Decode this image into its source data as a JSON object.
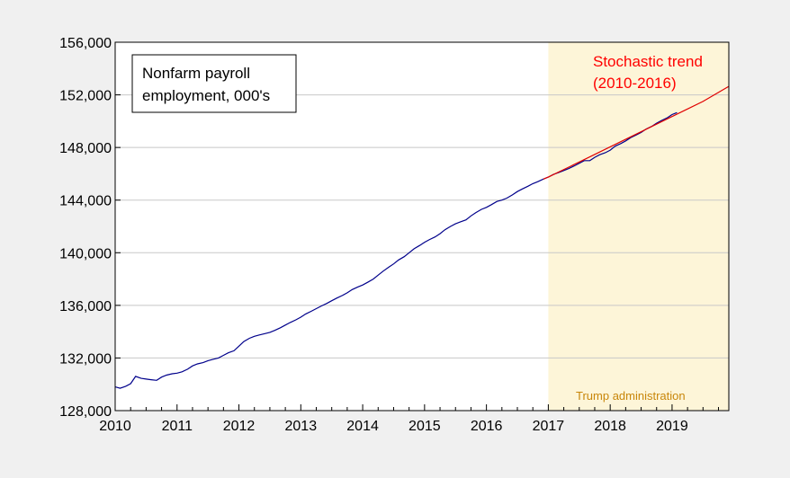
{
  "chart_data": {
    "type": "line",
    "title": "",
    "xlabel": "",
    "ylabel": "",
    "xlim": [
      2010.0,
      2019.917
    ],
    "ylim": [
      128000,
      156000
    ],
    "grid": true,
    "x_ticks": [
      "2010",
      "2011",
      "2012",
      "2013",
      "2014",
      "2015",
      "2016",
      "2017",
      "2018",
      "2019"
    ],
    "y_ticks": [
      "128,000",
      "132,000",
      "136,000",
      "140,000",
      "144,000",
      "148,000",
      "152,000",
      "156,000"
    ],
    "legend_box": {
      "lines": [
        "Nonfarm payroll",
        "employment, 000's"
      ]
    },
    "shaded_region": {
      "x_start": 2017.0,
      "x_end": 2019.917,
      "label": "Trump administration",
      "color": "#fdf5d8",
      "label_color": "#c8860a"
    },
    "series": [
      {
        "name": "Nonfarm payroll employment, 000's",
        "color": "#00008b",
        "points": [
          [
            2010.0,
            129800
          ],
          [
            2010.08,
            129700
          ],
          [
            2010.17,
            129850
          ],
          [
            2010.25,
            130050
          ],
          [
            2010.33,
            130600
          ],
          [
            2010.42,
            130450
          ],
          [
            2010.5,
            130400
          ],
          [
            2010.58,
            130350
          ],
          [
            2010.67,
            130300
          ],
          [
            2010.75,
            130550
          ],
          [
            2010.83,
            130700
          ],
          [
            2010.92,
            130800
          ],
          [
            2011.0,
            130850
          ],
          [
            2011.08,
            130950
          ],
          [
            2011.17,
            131150
          ],
          [
            2011.25,
            131400
          ],
          [
            2011.33,
            131550
          ],
          [
            2011.42,
            131650
          ],
          [
            2011.5,
            131800
          ],
          [
            2011.58,
            131900
          ],
          [
            2011.67,
            132000
          ],
          [
            2011.75,
            132200
          ],
          [
            2011.83,
            132400
          ],
          [
            2011.92,
            132550
          ],
          [
            2012.0,
            132900
          ],
          [
            2012.08,
            133250
          ],
          [
            2012.17,
            133500
          ],
          [
            2012.25,
            133650
          ],
          [
            2012.33,
            133750
          ],
          [
            2012.42,
            133850
          ],
          [
            2012.5,
            133950
          ],
          [
            2012.58,
            134100
          ],
          [
            2012.67,
            134300
          ],
          [
            2012.75,
            134500
          ],
          [
            2012.83,
            134700
          ],
          [
            2012.92,
            134900
          ],
          [
            2013.0,
            135100
          ],
          [
            2013.08,
            135350
          ],
          [
            2013.17,
            135550
          ],
          [
            2013.25,
            135750
          ],
          [
            2013.33,
            135950
          ],
          [
            2013.42,
            136150
          ],
          [
            2013.5,
            136350
          ],
          [
            2013.58,
            136550
          ],
          [
            2013.67,
            136750
          ],
          [
            2013.75,
            136950
          ],
          [
            2013.83,
            137200
          ],
          [
            2013.92,
            137400
          ],
          [
            2014.0,
            137550
          ],
          [
            2014.08,
            137750
          ],
          [
            2014.17,
            138000
          ],
          [
            2014.25,
            138300
          ],
          [
            2014.33,
            138600
          ],
          [
            2014.42,
            138900
          ],
          [
            2014.5,
            139150
          ],
          [
            2014.58,
            139450
          ],
          [
            2014.67,
            139700
          ],
          [
            2014.75,
            140000
          ],
          [
            2014.83,
            140300
          ],
          [
            2014.92,
            140550
          ],
          [
            2015.0,
            140800
          ],
          [
            2015.08,
            141000
          ],
          [
            2015.17,
            141200
          ],
          [
            2015.25,
            141450
          ],
          [
            2015.33,
            141750
          ],
          [
            2015.42,
            142000
          ],
          [
            2015.5,
            142200
          ],
          [
            2015.58,
            142350
          ],
          [
            2015.67,
            142500
          ],
          [
            2015.75,
            142800
          ],
          [
            2015.83,
            143050
          ],
          [
            2015.92,
            143300
          ],
          [
            2016.0,
            143450
          ],
          [
            2016.08,
            143650
          ],
          [
            2016.17,
            143900
          ],
          [
            2016.25,
            144000
          ],
          [
            2016.33,
            144150
          ],
          [
            2016.42,
            144400
          ],
          [
            2016.5,
            144650
          ],
          [
            2016.58,
            144850
          ],
          [
            2016.67,
            145050
          ],
          [
            2016.75,
            145250
          ],
          [
            2016.83,
            145400
          ],
          [
            2016.92,
            145600
          ],
          [
            2017.0,
            145750
          ],
          [
            2017.08,
            145950
          ],
          [
            2017.17,
            146100
          ],
          [
            2017.25,
            146250
          ],
          [
            2017.33,
            146400
          ],
          [
            2017.42,
            146600
          ],
          [
            2017.5,
            146800
          ],
          [
            2017.58,
            147000
          ],
          [
            2017.67,
            147000
          ],
          [
            2017.75,
            147250
          ],
          [
            2017.83,
            147450
          ],
          [
            2017.92,
            147600
          ],
          [
            2018.0,
            147800
          ],
          [
            2018.08,
            148100
          ],
          [
            2018.17,
            148300
          ],
          [
            2018.25,
            148500
          ],
          [
            2018.33,
            148750
          ],
          [
            2018.42,
            148950
          ],
          [
            2018.5,
            149150
          ],
          [
            2018.58,
            149400
          ],
          [
            2018.67,
            149600
          ],
          [
            2018.75,
            149850
          ],
          [
            2018.83,
            150050
          ],
          [
            2018.92,
            150250
          ],
          [
            2019.0,
            150500
          ],
          [
            2019.08,
            150650
          ]
        ]
      },
      {
        "name": "Stochastic trend (2010-2016)",
        "color": "#e00000",
        "points": [
          [
            2016.92,
            145600
          ],
          [
            2017.0,
            145750
          ],
          [
            2017.5,
            146900
          ],
          [
            2018.0,
            148050
          ],
          [
            2018.5,
            149200
          ],
          [
            2019.0,
            150350
          ],
          [
            2019.5,
            151500
          ],
          [
            2019.917,
            152650
          ]
        ]
      }
    ],
    "annotations": [
      {
        "lines": [
          "Stochastic trend",
          "(2010-2016)"
        ],
        "color": "#ff0000"
      }
    ]
  }
}
